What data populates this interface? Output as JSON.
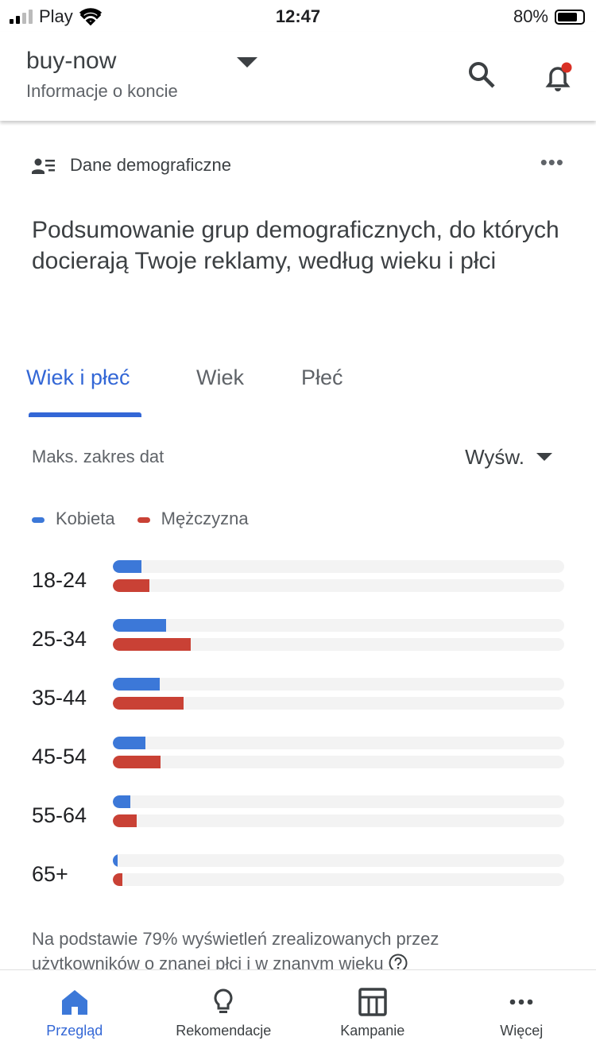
{
  "status_bar": {
    "carrier": "Play",
    "time": "12:47",
    "battery": "80%",
    "battery_level": 0.8
  },
  "header": {
    "account": "buy-now",
    "subtitle": "Informacje o koncie",
    "notification_dot_color": "#d93025"
  },
  "card": {
    "section_label": "Dane demograficzne",
    "title": "Podsumowanie grup demograficznych, do których docierają Twoje reklamy, według wieku i płci"
  },
  "tabs": [
    {
      "label": "Wiek i płeć",
      "active": true
    },
    {
      "label": "Wiek"
    },
    {
      "label": "Płeć"
    }
  ],
  "filters": {
    "date_range": "Maks. zakres dat",
    "metric": "Wyśw."
  },
  "chart_data": {
    "type": "bar",
    "orientation": "horizontal",
    "categories": [
      "18-24",
      "25-34",
      "35-44",
      "45-54",
      "55-64",
      "65+"
    ],
    "series": [
      {
        "name": "Kobieta",
        "color": "#3c78d8",
        "values": [
          6.3,
          11.8,
          10.4,
          7.2,
          3.9,
          1.1
        ]
      },
      {
        "name": "Mężczyzna",
        "color": "#c94135",
        "values": [
          8.1,
          17.3,
          15.7,
          10.5,
          5.2,
          2.1
        ]
      }
    ],
    "xlim": [
      0,
      100
    ],
    "grid": false,
    "legend": "top-left"
  },
  "footnote": "Na podstawie 79% wyświetleń zrealizowanych przez użytkowników o znanej płci i w znanym wieku",
  "bottom_nav": [
    {
      "label": "Przegląd",
      "active": true
    },
    {
      "label": "Rekomendacje"
    },
    {
      "label": "Kampanie"
    },
    {
      "label": "Więcej"
    }
  ]
}
